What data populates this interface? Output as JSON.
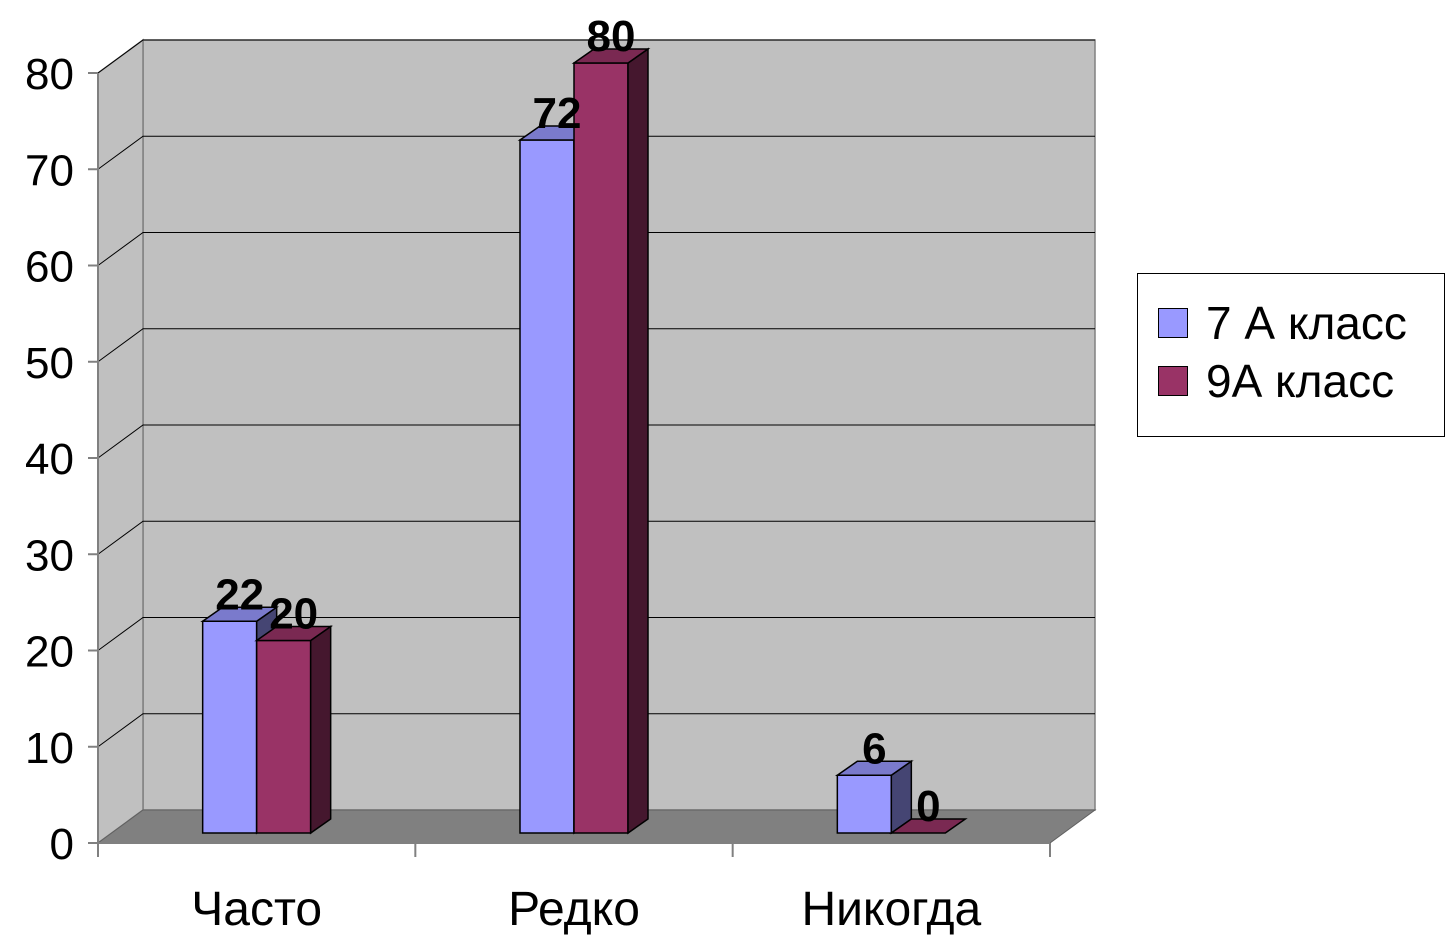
{
  "chart_data": {
    "type": "bar",
    "categories": [
      "Часто",
      "Редко",
      "Никогда"
    ],
    "series": [
      {
        "name": "7 А класс",
        "values": [
          22,
          72,
          6
        ],
        "color": "#9999ff"
      },
      {
        "name": "9А класс",
        "values": [
          20,
          80,
          0
        ],
        "color": "#993366"
      }
    ],
    "ylim": [
      0,
      80
    ],
    "yticks": [
      "0",
      "10",
      "20",
      "30",
      "40",
      "50",
      "60",
      "70",
      "80"
    ],
    "grid": true,
    "legend_position": "right",
    "wall_color": "#c0c0c0",
    "floor_color": "#808080"
  }
}
